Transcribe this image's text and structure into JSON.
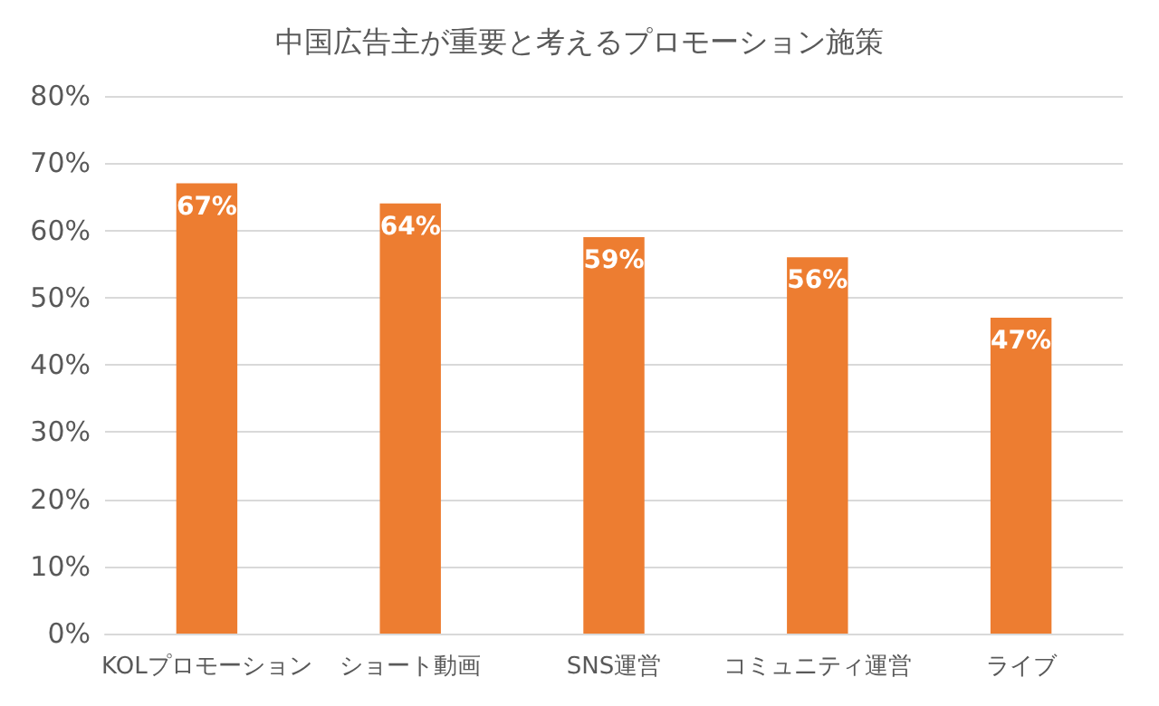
{
  "chart_data": {
    "type": "bar",
    "title": "中国広告主が重要と考えるプロモーション施策",
    "categories": [
      "KOLプロモーション",
      "ショート動画",
      "SNS運営",
      "コミュニティ運営",
      "ライブ"
    ],
    "values": [
      67,
      64,
      59,
      56,
      47
    ],
    "value_labels": [
      "67%",
      "64%",
      "59%",
      "56%",
      "47%"
    ],
    "color": "#ed7d31",
    "ylim": [
      0,
      80
    ],
    "yticks": [
      {
        "value": 0,
        "label": "0%"
      },
      {
        "value": 10,
        "label": "10%"
      },
      {
        "value": 20,
        "label": "20%"
      },
      {
        "value": 30,
        "label": "30%"
      },
      {
        "value": 40,
        "label": "40%"
      },
      {
        "value": 50,
        "label": "50%"
      },
      {
        "value": 60,
        "label": "60%"
      },
      {
        "value": 70,
        "label": "70%"
      },
      {
        "value": 80,
        "label": "80%"
      }
    ],
    "grid": true
  }
}
